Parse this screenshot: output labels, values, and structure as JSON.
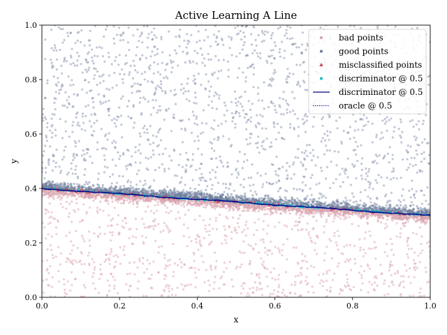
{
  "chart_data": {
    "type": "scatter",
    "title": "Active Learning A Line",
    "xlabel": "x",
    "ylabel": "y",
    "xlim": [
      0.0,
      1.0
    ],
    "ylim": [
      0.0,
      1.0
    ],
    "xticks": [
      "0.0",
      "0.2",
      "0.4",
      "0.6",
      "0.8",
      "1.0"
    ],
    "yticks": [
      "0.0",
      "0.2",
      "0.4",
      "0.6",
      "0.8",
      "1.0"
    ],
    "grid": false,
    "legend_position": "top-right",
    "boundary_line": {
      "x": [
        0.0,
        1.0
      ],
      "y": [
        0.4,
        0.3
      ]
    },
    "series": [
      {
        "name": "bad points",
        "marker": "circle",
        "color": "#d9a3ad"
      },
      {
        "name": "good points",
        "marker": "circle",
        "color": "#6e7d9c"
      },
      {
        "name": "misclassified points",
        "marker": "triangle",
        "color": "#c94a5a"
      },
      {
        "name": "discriminator @ 0.5",
        "marker": "circle",
        "color": "#17becf"
      },
      {
        "name": "discriminator @ 0.5",
        "marker": "line",
        "color": "#00008b"
      },
      {
        "name": "oracle @ 0.5",
        "marker": "dotted-line",
        "color": "#00008b"
      }
    ]
  }
}
